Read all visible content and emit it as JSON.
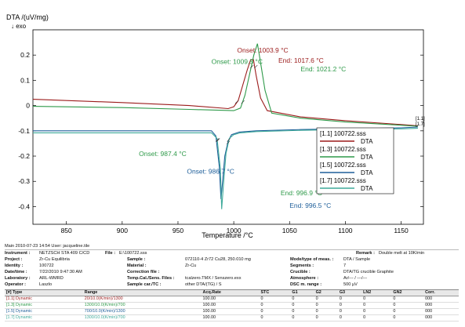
{
  "chart_data": {
    "type": "line",
    "ylabel": "DTA /(uV/mg)",
    "yunit_dir": "↓ exo",
    "xlabel": "Temperature /°C",
    "xlim": [
      820,
      1170
    ],
    "ylim": [
      -0.47,
      0.3
    ],
    "x_ticks": [
      850,
      900,
      950,
      1000,
      1050,
      1100,
      1150
    ],
    "y_ticks": [
      0.2,
      0.1,
      0.0,
      -0.1,
      -0.2,
      -0.3,
      -0.4
    ],
    "y_tick_labels": [
      "0.2",
      "0.1",
      "0",
      "-0.1",
      "-0.2",
      "-0.3",
      "-0.4"
    ],
    "grid": false,
    "series": [
      {
        "name": "[1.1] 100722.sss",
        "sub": "DTA",
        "color": "#9b1b1b",
        "x": [
          820,
          900,
          960,
          995,
          1000,
          1004,
          1008,
          1012,
          1015,
          1017.6,
          1020,
          1024,
          1030,
          1060,
          1100,
          1150,
          1165
        ],
        "y": [
          0.025,
          0.012,
          0.0,
          -0.012,
          -0.005,
          0.02,
          0.08,
          0.14,
          0.18,
          0.182,
          0.12,
          0.03,
          -0.02,
          -0.045,
          -0.06,
          -0.075,
          -0.08
        ]
      },
      {
        "name": "[1.3] 100722.sss",
        "sub": "DTA",
        "color": "#2f9a4a",
        "x": [
          820,
          900,
          960,
          1000,
          1006,
          1010,
          1014,
          1018,
          1021.2,
          1024,
          1028,
          1034,
          1060,
          1100,
          1150,
          1165
        ],
        "y": [
          -0.003,
          -0.008,
          -0.015,
          -0.02,
          -0.01,
          0.04,
          0.12,
          0.2,
          0.245,
          0.17,
          0.06,
          -0.03,
          -0.05,
          -0.065,
          -0.078,
          -0.082
        ]
      },
      {
        "name": "[1.5] 100722.sss",
        "sub": "DTA",
        "color": "#1f5f9a",
        "x": [
          820,
          900,
          960,
          980,
          984,
          987,
          988.5,
          990,
          992,
          995,
          998,
          1005,
          1020,
          1060,
          1100,
          1150,
          1165
        ],
        "y": [
          -0.1,
          -0.1,
          -0.1,
          -0.1,
          -0.12,
          -0.24,
          -0.37,
          -0.3,
          -0.2,
          -0.14,
          -0.115,
          -0.105,
          -0.1,
          -0.095,
          -0.092,
          -0.088,
          -0.085
        ]
      },
      {
        "name": "[1.7] 100722.sss",
        "sub": "DTA",
        "color": "#3faa9a",
        "x": [
          820,
          900,
          960,
          980,
          985,
          988,
          989.2,
          991,
          993,
          996,
          1000,
          1006,
          1020,
          1060,
          1100,
          1150,
          1165
        ],
        "y": [
          -0.108,
          -0.108,
          -0.108,
          -0.108,
          -0.13,
          -0.25,
          -0.41,
          -0.3,
          -0.19,
          -0.13,
          -0.115,
          -0.108,
          -0.103,
          -0.098,
          -0.095,
          -0.092,
          -0.09
        ]
      }
    ],
    "annotations": [
      {
        "text": "Onset: 1003.9 °C",
        "color": "#9b1b1b",
        "tx": 1003,
        "ty": 0.21,
        "mx": 1004,
        "my": 0.02
      },
      {
        "text": "Onset: 1009.5 °C",
        "color": "#2f9a4a",
        "tx": 980,
        "ty": 0.165,
        "mx": 1009.5,
        "my": 0.02
      },
      {
        "text": "End: 1017.6 °C",
        "color": "#9b1b1b",
        "tx": 1040,
        "ty": 0.17,
        "mx": 1017.6,
        "my": 0.16
      },
      {
        "text": "End: 1021.2 °C",
        "color": "#2f9a4a",
        "tx": 1060,
        "ty": 0.135,
        "mx": 1021.2,
        "my": 0.16
      },
      {
        "text": "Onset: 987.4 °C",
        "color": "#2f9a4a",
        "tx": 915,
        "ty": -0.2,
        "mx": 987.4,
        "my": -0.13
      },
      {
        "text": "Onset: 986.7 °C",
        "color": "#1f5f9a",
        "tx": 958,
        "ty": -0.27,
        "mx": 986.7,
        "my": -0.13
      },
      {
        "text": "End: 996.9 °C",
        "color": "#2f9a4a",
        "tx": 1042,
        "ty": -0.355,
        "mx": 996.9,
        "my": -0.13
      },
      {
        "text": "End: 996.5 °C",
        "color": "#1f5f9a",
        "tx": 1050,
        "ty": -0.405,
        "mx": 996.5,
        "my": -0.14
      }
    ],
    "right_end_labels": [
      "[1.1]",
      "[1.7]"
    ]
  },
  "info": {
    "main_line": "Main    2010-07-23 14:54    User: jacqueline.tile",
    "instrument_k": "Instrument :",
    "instrument_v": "NETZSCH STA 409 C/CD",
    "file_k": "File :",
    "file_v": "E:\\100722.sss",
    "remark_k": "Remark :",
    "remark_v": "Double melt at 10K/min",
    "project_k": "Project :",
    "project_v": "Zr-Cu Equilibria",
    "identity_k": "Identity :",
    "identity_v": "100722",
    "datetime_k": "Date/time :",
    "datetime_v": "7/22/2010 9:47:30 AM",
    "lab_k": "Laboratory :",
    "lab_v": "ARL-WMRD",
    "operator_k": "Operator :",
    "operator_v": "Laszlo",
    "sample_k": "Sample :",
    "sample_v": "072110-4 Zr72 Cu28, 250.010 mg",
    "material_k": "Material :",
    "material_v": "Zr-Cu",
    "corr_k": "Correction file :",
    "corr_v": "",
    "temp_k": "Temp.Cal./Sens. Files :",
    "temp_v": "tcalzero.TMX / Senszero.exx",
    "samplecar_k": "Sample car./TC :",
    "samplecar_v": "other DTA/(TG) / S",
    "mode_k": "Mode/type of meas. :",
    "mode_v": "DTA / Sample",
    "segments_k": "Segments :",
    "segments_v": "7",
    "crucible_k": "Crucible :",
    "crucible_v": "DTA/TG crucible Graphite",
    "atmos_k": "Atmosphere :",
    "atmos_v": "Ar/--- / ---/---",
    "dsc_k": "DSC m. range :",
    "dsc_v": "500 µV",
    "table_headers": [
      "[#] Type",
      "Range",
      "Acq.Rate",
      "STC",
      "G1",
      "G2",
      "G3",
      "LN2",
      "GN2",
      "Corr."
    ],
    "table_rows": [
      [
        "[1.1] Dynamic",
        "20/10.0(K/min)/1300",
        "100.00",
        "0",
        "0",
        "0",
        "0",
        "0",
        "0",
        "000"
      ],
      [
        "[1.3] Dynamic",
        "1300/10.0(K/min)/700",
        "100.00",
        "0",
        "0",
        "0",
        "0",
        "0",
        "0",
        "000"
      ],
      [
        "[1.5] Dynamic",
        "700/10.0(K/min)/1300",
        "100.00",
        "0",
        "0",
        "0",
        "0",
        "0",
        "0",
        "000"
      ],
      [
        "[1.7] Dynamic",
        "1300/10.0(K/min)/700",
        "100.00",
        "0",
        "0",
        "0",
        "0",
        "0",
        "0",
        "000"
      ]
    ]
  }
}
